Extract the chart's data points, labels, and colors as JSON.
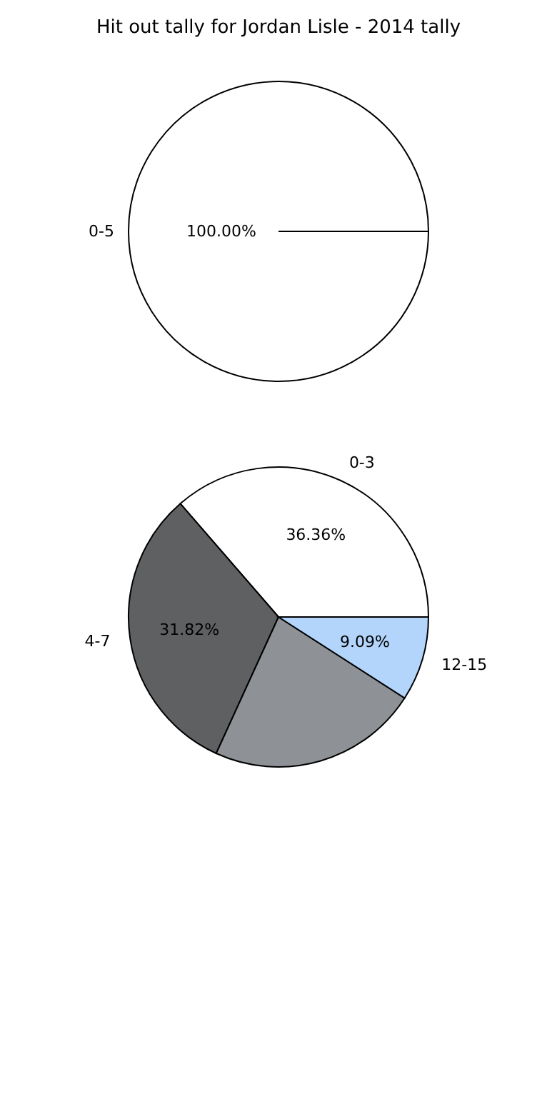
{
  "chart_data": [
    {
      "type": "pie",
      "title": "Hit out tally for Jordan Lisle - 2014 tally",
      "categories": [
        "0-5"
      ],
      "values": [
        100
      ],
      "colors": [
        "#ffffff"
      ],
      "value_labels": [
        "100.00%"
      ]
    },
    {
      "type": "pie",
      "categories": [
        "0-3",
        "4-7",
        null,
        "12-15"
      ],
      "values": [
        36.36,
        31.82,
        22.73,
        9.09
      ],
      "colors": [
        "#ffffff",
        "#5f6062",
        "#8e9296",
        "#b3d5fb"
      ],
      "value_labels": [
        "36.36%",
        "31.82%",
        null,
        "9.09%"
      ]
    }
  ]
}
